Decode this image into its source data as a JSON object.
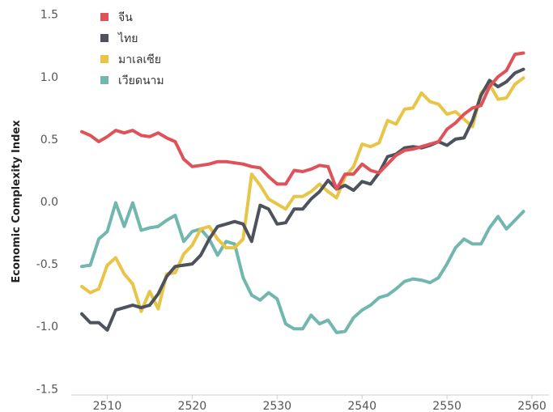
{
  "chart_data": {
    "type": "line",
    "title": "",
    "xlabel": "",
    "ylabel": "Economic Complexity Index",
    "xlim": [
      2505,
      2562
    ],
    "ylim": [
      -1.55,
      1.55
    ],
    "x_ticks": [
      2510,
      2520,
      2530,
      2540,
      2550,
      2560
    ],
    "x_tick_labels": [
      "2510",
      "2520",
      "2530",
      "2540",
      "2550",
      "2560"
    ],
    "y_ticks": [
      1.5,
      1.0,
      0.5,
      0.0,
      -0.5,
      -1.0,
      -1.5
    ],
    "y_tick_labels": [
      "1.5",
      "1.0",
      "0.5",
      "0.0",
      "-0.5",
      "-1.0",
      "-1.5"
    ],
    "grid": false,
    "legend_position": "top-left",
    "x": [
      2507,
      2508,
      2509,
      2510,
      2511,
      2512,
      2513,
      2514,
      2515,
      2516,
      2517,
      2518,
      2519,
      2520,
      2521,
      2522,
      2523,
      2524,
      2525,
      2526,
      2527,
      2528,
      2529,
      2530,
      2531,
      2532,
      2533,
      2534,
      2535,
      2536,
      2537,
      2538,
      2539,
      2540,
      2541,
      2542,
      2543,
      2544,
      2545,
      2546,
      2547,
      2548,
      2549,
      2550,
      2551,
      2552,
      2553,
      2554,
      2555,
      2556,
      2557,
      2558,
      2559
    ],
    "series": [
      {
        "name": "จีน",
        "color": "#e0525a",
        "values": [
          0.56,
          0.53,
          0.48,
          0.52,
          0.57,
          0.55,
          0.57,
          0.53,
          0.52,
          0.55,
          0.51,
          0.48,
          0.34,
          0.28,
          0.29,
          0.3,
          0.32,
          0.32,
          0.31,
          0.3,
          0.28,
          0.27,
          0.2,
          0.14,
          0.14,
          0.25,
          0.24,
          0.26,
          0.29,
          0.28,
          0.1,
          0.22,
          0.22,
          0.3,
          0.25,
          0.23,
          0.3,
          0.37,
          0.41,
          0.42,
          0.44,
          0.46,
          0.48,
          0.58,
          0.63,
          0.7,
          0.75,
          0.77,
          0.92,
          1.0,
          1.05,
          1.18,
          1.19
        ]
      },
      {
        "name": "ไทย",
        "color": "#4d525c",
        "values": [
          -0.9,
          -0.97,
          -0.97,
          -1.03,
          -0.87,
          -0.85,
          -0.83,
          -0.85,
          -0.83,
          -0.74,
          -0.6,
          -0.52,
          -0.51,
          -0.5,
          -0.43,
          -0.3,
          -0.2,
          -0.18,
          -0.16,
          -0.18,
          -0.32,
          -0.03,
          -0.06,
          -0.18,
          -0.17,
          -0.06,
          -0.06,
          0.02,
          0.08,
          0.17,
          0.1,
          0.13,
          0.09,
          0.16,
          0.14,
          0.23,
          0.36,
          0.38,
          0.43,
          0.44,
          0.43,
          0.45,
          0.48,
          0.45,
          0.5,
          0.51,
          0.65,
          0.85,
          0.97,
          0.92,
          0.96,
          1.03,
          1.06
        ]
      },
      {
        "name": "มาเลเซีย",
        "color": "#e8c547",
        "values": [
          -0.68,
          -0.73,
          -0.7,
          -0.51,
          -0.45,
          -0.58,
          -0.66,
          -0.88,
          -0.72,
          -0.86,
          -0.58,
          -0.57,
          -0.42,
          -0.35,
          -0.22,
          -0.2,
          -0.3,
          -0.37,
          -0.37,
          -0.3,
          0.22,
          0.13,
          0.02,
          -0.02,
          -0.06,
          0.04,
          0.04,
          0.08,
          0.14,
          0.08,
          0.03,
          0.2,
          0.28,
          0.46,
          0.44,
          0.47,
          0.65,
          0.62,
          0.74,
          0.75,
          0.87,
          0.8,
          0.78,
          0.7,
          0.72,
          0.66,
          0.6,
          0.87,
          0.94,
          0.82,
          0.83,
          0.94,
          0.99
        ]
      },
      {
        "name": "เวียดนาม",
        "color": "#72b7ae",
        "values": [
          -0.52,
          -0.51,
          -0.3,
          -0.24,
          -0.01,
          -0.2,
          -0.01,
          -0.23,
          -0.21,
          -0.2,
          -0.15,
          -0.11,
          -0.32,
          -0.24,
          -0.22,
          -0.3,
          -0.43,
          -0.32,
          -0.34,
          -0.61,
          -0.75,
          -0.79,
          -0.73,
          -0.78,
          -0.98,
          -1.02,
          -1.02,
          -0.91,
          -0.98,
          -0.95,
          -1.05,
          -1.04,
          -0.93,
          -0.87,
          -0.83,
          -0.77,
          -0.75,
          -0.7,
          -0.64,
          -0.62,
          -0.63,
          -0.65,
          -0.61,
          -0.5,
          -0.37,
          -0.3,
          -0.34,
          -0.34,
          -0.21,
          -0.12,
          -0.22,
          -0.15,
          -0.08
        ]
      }
    ]
  }
}
